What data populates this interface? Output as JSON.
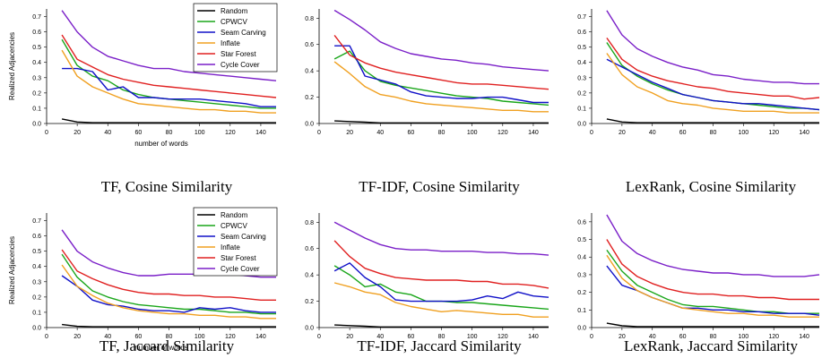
{
  "chart_data": [
    {
      "type": "line",
      "caption": "TF, Cosine Similarity",
      "ylabel": "Realized Adjacencies",
      "xlabel": "number of words",
      "xlim": [
        0,
        150
      ],
      "ylim": [
        0,
        0.75
      ],
      "xticks": [
        0,
        20,
        40,
        60,
        80,
        100,
        120,
        140
      ],
      "yticks": [
        0.0,
        0.1,
        0.2,
        0.3,
        0.4,
        0.5,
        0.6,
        0.7
      ],
      "legend": true,
      "x": [
        10,
        20,
        30,
        40,
        50,
        60,
        70,
        80,
        90,
        100,
        110,
        120,
        130,
        140,
        150
      ],
      "series": [
        {
          "name": "Random",
          "color": "#000000",
          "values": [
            0.03,
            0.01,
            0.005,
            0.005,
            0.005,
            0.005,
            0.005,
            0.005,
            0.005,
            0.005,
            0.005,
            0.005,
            0.005,
            0.005,
            0.005
          ]
        },
        {
          "name": "CPWCV",
          "color": "#1aa61a",
          "values": [
            0.55,
            0.38,
            0.31,
            0.28,
            0.22,
            0.19,
            0.17,
            0.16,
            0.15,
            0.14,
            0.13,
            0.12,
            0.11,
            0.1,
            0.1
          ]
        },
        {
          "name": "Seam Carving",
          "color": "#1010c8",
          "values": [
            0.36,
            0.36,
            0.34,
            0.22,
            0.24,
            0.17,
            0.17,
            0.16,
            0.16,
            0.16,
            0.15,
            0.14,
            0.13,
            0.11,
            0.11
          ]
        },
        {
          "name": "Inflate",
          "color": "#f0a020",
          "values": [
            0.48,
            0.31,
            0.24,
            0.2,
            0.16,
            0.13,
            0.12,
            0.11,
            0.1,
            0.09,
            0.09,
            0.08,
            0.08,
            0.07,
            0.07
          ]
        },
        {
          "name": "Star Forest",
          "color": "#e02020",
          "values": [
            0.58,
            0.42,
            0.37,
            0.32,
            0.29,
            0.27,
            0.25,
            0.24,
            0.23,
            0.22,
            0.21,
            0.2,
            0.19,
            0.18,
            0.17
          ]
        },
        {
          "name": "Cycle Cover",
          "color": "#7a1fc8",
          "values": [
            0.74,
            0.6,
            0.5,
            0.44,
            0.41,
            0.38,
            0.36,
            0.36,
            0.34,
            0.33,
            0.32,
            0.31,
            0.3,
            0.29,
            0.28
          ]
        }
      ]
    },
    {
      "type": "line",
      "caption": "TF-IDF, Cosine Similarity",
      "ylabel": "",
      "xlabel": "",
      "xlim": [
        0,
        150
      ],
      "ylim": [
        0,
        0.87
      ],
      "xticks": [
        0,
        20,
        40,
        60,
        80,
        100,
        120,
        140
      ],
      "yticks": [
        0.0,
        0.2,
        0.4,
        0.6,
        0.8
      ],
      "legend": false,
      "x": [
        10,
        20,
        30,
        40,
        50,
        60,
        70,
        80,
        90,
        100,
        110,
        120,
        130,
        140,
        150
      ],
      "series": [
        {
          "name": "Random",
          "color": "#000000",
          "values": [
            0.02,
            0.015,
            0.01,
            0.005,
            0.005,
            0.005,
            0.005,
            0.005,
            0.005,
            0.005,
            0.005,
            0.005,
            0.005,
            0.005,
            0.005
          ]
        },
        {
          "name": "CPWCV",
          "color": "#1aa61a",
          "values": [
            0.49,
            0.55,
            0.4,
            0.32,
            0.29,
            0.27,
            0.25,
            0.23,
            0.21,
            0.2,
            0.19,
            0.17,
            0.16,
            0.15,
            0.14
          ]
        },
        {
          "name": "Seam Carving",
          "color": "#1010c8",
          "values": [
            0.59,
            0.59,
            0.36,
            0.33,
            0.3,
            0.24,
            0.21,
            0.2,
            0.19,
            0.19,
            0.2,
            0.2,
            0.18,
            0.16,
            0.16
          ]
        },
        {
          "name": "Inflate",
          "color": "#f0a020",
          "values": [
            0.47,
            0.38,
            0.28,
            0.22,
            0.2,
            0.17,
            0.15,
            0.14,
            0.13,
            0.12,
            0.11,
            0.1,
            0.1,
            0.09,
            0.09
          ]
        },
        {
          "name": "Star Forest",
          "color": "#e02020",
          "values": [
            0.67,
            0.52,
            0.46,
            0.42,
            0.39,
            0.37,
            0.35,
            0.33,
            0.31,
            0.3,
            0.3,
            0.29,
            0.28,
            0.27,
            0.26
          ]
        },
        {
          "name": "Cycle Cover",
          "color": "#7a1fc8",
          "values": [
            0.86,
            0.79,
            0.71,
            0.62,
            0.57,
            0.53,
            0.51,
            0.49,
            0.48,
            0.46,
            0.45,
            0.43,
            0.42,
            0.41,
            0.4
          ]
        }
      ]
    },
    {
      "type": "line",
      "caption": "LexRank, Cosine Similarity",
      "ylabel": "",
      "xlabel": "",
      "xlim": [
        0,
        150
      ],
      "ylim": [
        0,
        0.75
      ],
      "xticks": [
        0,
        20,
        40,
        60,
        80,
        100,
        120,
        140
      ],
      "yticks": [
        0.0,
        0.1,
        0.2,
        0.3,
        0.4,
        0.5,
        0.6,
        0.7
      ],
      "legend": false,
      "x": [
        10,
        20,
        30,
        40,
        50,
        60,
        70,
        80,
        90,
        100,
        110,
        120,
        130,
        140,
        150
      ],
      "series": [
        {
          "name": "Random",
          "color": "#000000",
          "values": [
            0.03,
            0.01,
            0.005,
            0.005,
            0.005,
            0.005,
            0.005,
            0.005,
            0.005,
            0.005,
            0.005,
            0.005,
            0.005,
            0.005,
            0.005
          ]
        },
        {
          "name": "CPWCV",
          "color": "#1aa61a",
          "values": [
            0.53,
            0.38,
            0.31,
            0.26,
            0.22,
            0.19,
            0.17,
            0.15,
            0.14,
            0.13,
            0.12,
            0.11,
            0.1,
            0.1,
            0.09
          ]
        },
        {
          "name": "Seam Carving",
          "color": "#1010c8",
          "values": [
            0.42,
            0.37,
            0.32,
            0.27,
            0.23,
            0.19,
            0.17,
            0.15,
            0.14,
            0.13,
            0.13,
            0.12,
            0.11,
            0.1,
            0.09
          ]
        },
        {
          "name": "Inflate",
          "color": "#f0a020",
          "values": [
            0.46,
            0.32,
            0.24,
            0.2,
            0.15,
            0.13,
            0.12,
            0.1,
            0.09,
            0.08,
            0.08,
            0.08,
            0.07,
            0.07,
            0.07
          ]
        },
        {
          "name": "Star Forest",
          "color": "#e02020",
          "values": [
            0.56,
            0.42,
            0.35,
            0.31,
            0.28,
            0.26,
            0.24,
            0.23,
            0.21,
            0.2,
            0.19,
            0.18,
            0.18,
            0.16,
            0.17
          ]
        },
        {
          "name": "Cycle Cover",
          "color": "#7a1fc8",
          "values": [
            0.74,
            0.58,
            0.49,
            0.44,
            0.4,
            0.37,
            0.35,
            0.32,
            0.31,
            0.29,
            0.28,
            0.27,
            0.27,
            0.26,
            0.26
          ]
        }
      ]
    },
    {
      "type": "line",
      "caption": "TF, Jaccard Similarity",
      "ylabel": "Realized Adjacencies",
      "xlabel": "number of words",
      "xlim": [
        0,
        150
      ],
      "ylim": [
        0,
        0.75
      ],
      "xticks": [
        0,
        20,
        40,
        60,
        80,
        100,
        120,
        140
      ],
      "yticks": [
        0.0,
        0.1,
        0.2,
        0.3,
        0.4,
        0.5,
        0.6,
        0.7
      ],
      "legend": true,
      "x": [
        10,
        20,
        30,
        40,
        50,
        60,
        70,
        80,
        90,
        100,
        110,
        120,
        130,
        140,
        150
      ],
      "series": [
        {
          "name": "Random",
          "color": "#000000",
          "values": [
            0.02,
            0.008,
            0.005,
            0.005,
            0.005,
            0.005,
            0.005,
            0.005,
            0.005,
            0.005,
            0.005,
            0.005,
            0.005,
            0.005,
            0.005
          ]
        },
        {
          "name": "CPWCV",
          "color": "#1aa61a",
          "values": [
            0.48,
            0.33,
            0.24,
            0.2,
            0.17,
            0.15,
            0.14,
            0.13,
            0.12,
            0.12,
            0.11,
            0.1,
            0.1,
            0.09,
            0.09
          ]
        },
        {
          "name": "Seam Carving",
          "color": "#1010c8",
          "values": [
            0.34,
            0.27,
            0.18,
            0.15,
            0.14,
            0.12,
            0.11,
            0.11,
            0.1,
            0.13,
            0.12,
            0.13,
            0.11,
            0.1,
            0.1
          ]
        },
        {
          "name": "Inflate",
          "color": "#f0a020",
          "values": [
            0.41,
            0.27,
            0.21,
            0.16,
            0.13,
            0.11,
            0.1,
            0.09,
            0.09,
            0.08,
            0.08,
            0.07,
            0.07,
            0.06,
            0.06
          ]
        },
        {
          "name": "Star Forest",
          "color": "#e02020",
          "values": [
            0.51,
            0.37,
            0.32,
            0.28,
            0.25,
            0.23,
            0.22,
            0.22,
            0.21,
            0.21,
            0.2,
            0.2,
            0.19,
            0.18,
            0.18
          ]
        },
        {
          "name": "Cycle Cover",
          "color": "#7a1fc8",
          "values": [
            0.64,
            0.5,
            0.43,
            0.39,
            0.36,
            0.34,
            0.34,
            0.35,
            0.35,
            0.35,
            0.36,
            0.35,
            0.34,
            0.33,
            0.33
          ]
        }
      ]
    },
    {
      "type": "line",
      "caption": "TF-IDF, Jaccard Similarity",
      "ylabel": "",
      "xlabel": "",
      "xlim": [
        0,
        150
      ],
      "ylim": [
        0,
        0.87
      ],
      "xticks": [
        0,
        20,
        40,
        60,
        80,
        100,
        120,
        140
      ],
      "yticks": [
        0.0,
        0.2,
        0.4,
        0.6,
        0.8
      ],
      "legend": false,
      "x": [
        10,
        20,
        30,
        40,
        50,
        60,
        70,
        80,
        90,
        100,
        110,
        120,
        130,
        140,
        150
      ],
      "series": [
        {
          "name": "Random",
          "color": "#000000",
          "values": [
            0.02,
            0.015,
            0.01,
            0.005,
            0.005,
            0.005,
            0.005,
            0.005,
            0.005,
            0.005,
            0.005,
            0.005,
            0.005,
            0.005,
            0.005
          ]
        },
        {
          "name": "CPWCV",
          "color": "#1aa61a",
          "values": [
            0.47,
            0.4,
            0.31,
            0.33,
            0.27,
            0.25,
            0.2,
            0.2,
            0.19,
            0.19,
            0.18,
            0.17,
            0.16,
            0.15,
            0.14
          ]
        },
        {
          "name": "Seam Carving",
          "color": "#1010c8",
          "values": [
            0.43,
            0.49,
            0.38,
            0.31,
            0.21,
            0.2,
            0.2,
            0.2,
            0.2,
            0.21,
            0.24,
            0.22,
            0.27,
            0.24,
            0.23
          ]
        },
        {
          "name": "Inflate",
          "color": "#f0a020",
          "values": [
            0.34,
            0.31,
            0.27,
            0.25,
            0.19,
            0.16,
            0.14,
            0.12,
            0.13,
            0.12,
            0.11,
            0.1,
            0.1,
            0.08,
            0.08
          ]
        },
        {
          "name": "Star Forest",
          "color": "#e02020",
          "values": [
            0.66,
            0.54,
            0.45,
            0.41,
            0.38,
            0.37,
            0.36,
            0.36,
            0.36,
            0.35,
            0.35,
            0.33,
            0.33,
            0.32,
            0.3
          ]
        },
        {
          "name": "Cycle Cover",
          "color": "#7a1fc8",
          "values": [
            0.8,
            0.74,
            0.68,
            0.63,
            0.6,
            0.59,
            0.59,
            0.58,
            0.58,
            0.58,
            0.57,
            0.57,
            0.56,
            0.56,
            0.55
          ]
        }
      ]
    },
    {
      "type": "line",
      "caption": "LexRank, Jaccard Similarity",
      "ylabel": "",
      "xlabel": "",
      "xlim": [
        0,
        150
      ],
      "ylim": [
        0,
        0.65
      ],
      "xticks": [
        0,
        20,
        40,
        60,
        80,
        100,
        120,
        140
      ],
      "yticks": [
        0.0,
        0.1,
        0.2,
        0.3,
        0.4,
        0.5,
        0.6
      ],
      "legend": false,
      "x": [
        10,
        20,
        30,
        40,
        50,
        60,
        70,
        80,
        90,
        100,
        110,
        120,
        130,
        140,
        150
      ],
      "series": [
        {
          "name": "Random",
          "color": "#000000",
          "values": [
            0.025,
            0.01,
            0.005,
            0.005,
            0.005,
            0.005,
            0.005,
            0.005,
            0.005,
            0.005,
            0.005,
            0.005,
            0.005,
            0.005,
            0.005
          ]
        },
        {
          "name": "CPWCV",
          "color": "#1aa61a",
          "values": [
            0.44,
            0.32,
            0.24,
            0.2,
            0.16,
            0.13,
            0.12,
            0.12,
            0.11,
            0.1,
            0.09,
            0.09,
            0.08,
            0.08,
            0.08
          ]
        },
        {
          "name": "Seam Carving",
          "color": "#1010c8",
          "values": [
            0.35,
            0.24,
            0.21,
            0.17,
            0.14,
            0.11,
            0.11,
            0.1,
            0.1,
            0.09,
            0.09,
            0.08,
            0.08,
            0.08,
            0.07
          ]
        },
        {
          "name": "Inflate",
          "color": "#f0a020",
          "values": [
            0.41,
            0.28,
            0.21,
            0.17,
            0.14,
            0.11,
            0.1,
            0.09,
            0.08,
            0.08,
            0.07,
            0.07,
            0.06,
            0.06,
            0.06
          ]
        },
        {
          "name": "Star Forest",
          "color": "#e02020",
          "values": [
            0.5,
            0.36,
            0.29,
            0.25,
            0.22,
            0.2,
            0.19,
            0.19,
            0.18,
            0.18,
            0.17,
            0.17,
            0.16,
            0.16,
            0.16
          ]
        },
        {
          "name": "Cycle Cover",
          "color": "#7a1fc8",
          "values": [
            0.64,
            0.49,
            0.42,
            0.38,
            0.35,
            0.33,
            0.32,
            0.31,
            0.31,
            0.3,
            0.3,
            0.29,
            0.29,
            0.29,
            0.3
          ]
        }
      ]
    }
  ]
}
